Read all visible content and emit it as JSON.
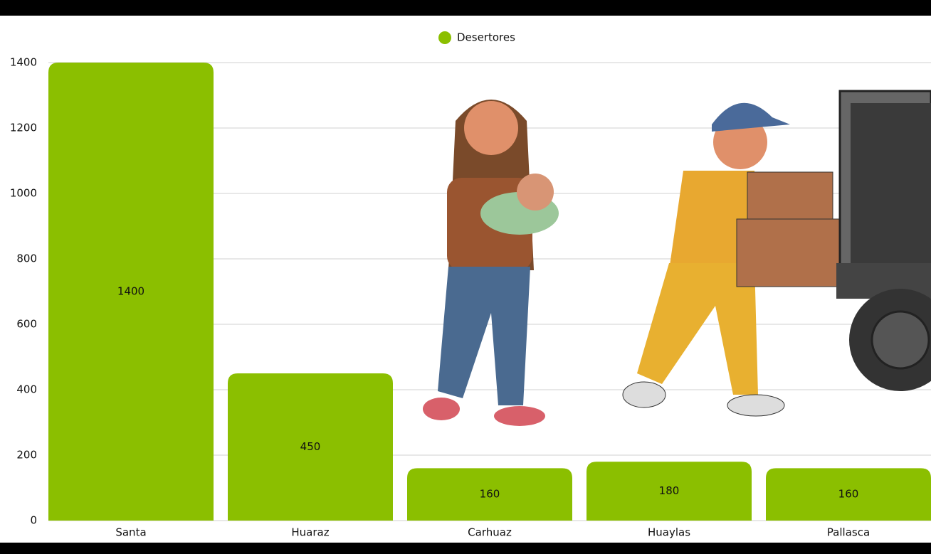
{
  "chart_data": {
    "type": "bar",
    "legend": "Desertores",
    "color": "#8bbf00",
    "categories": [
      "Santa",
      "Huaraz",
      "Carhuaz",
      "Huaylas",
      "Pallasca"
    ],
    "values": [
      1400,
      450,
      160,
      180,
      160
    ],
    "ylim": [
      0,
      1400
    ],
    "yticks": [
      0,
      200,
      400,
      600,
      800,
      1000,
      1200,
      1400
    ],
    "grid": true
  }
}
